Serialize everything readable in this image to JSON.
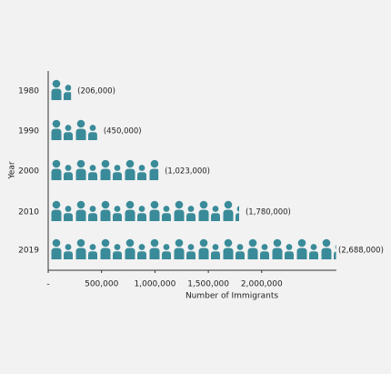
{
  "chart_data": {
    "type": "bar",
    "orientation": "horizontal",
    "y_label": "Year",
    "x_label": "Number of Immigrants",
    "categories": [
      "1980",
      "1990",
      "2000",
      "2010",
      "2019"
    ],
    "values": [
      206000,
      450000,
      1023000,
      1780000,
      2688000
    ],
    "value_labels": [
      "(206,000)",
      "(450,000)",
      "(1,023,000)",
      "(1,780,000)",
      "(2,688,000)"
    ],
    "color": "#3a8b99",
    "xlim": [
      0,
      2700000
    ],
    "xticks": [
      {
        "value": 0,
        "label": "-"
      },
      {
        "value": 500000,
        "label": "500,000"
      },
      {
        "value": 1000000,
        "label": "1,000,000"
      },
      {
        "value": 1500000,
        "label": "1,500,000"
      },
      {
        "value": 2000000,
        "label": "2,000,000"
      }
    ]
  }
}
